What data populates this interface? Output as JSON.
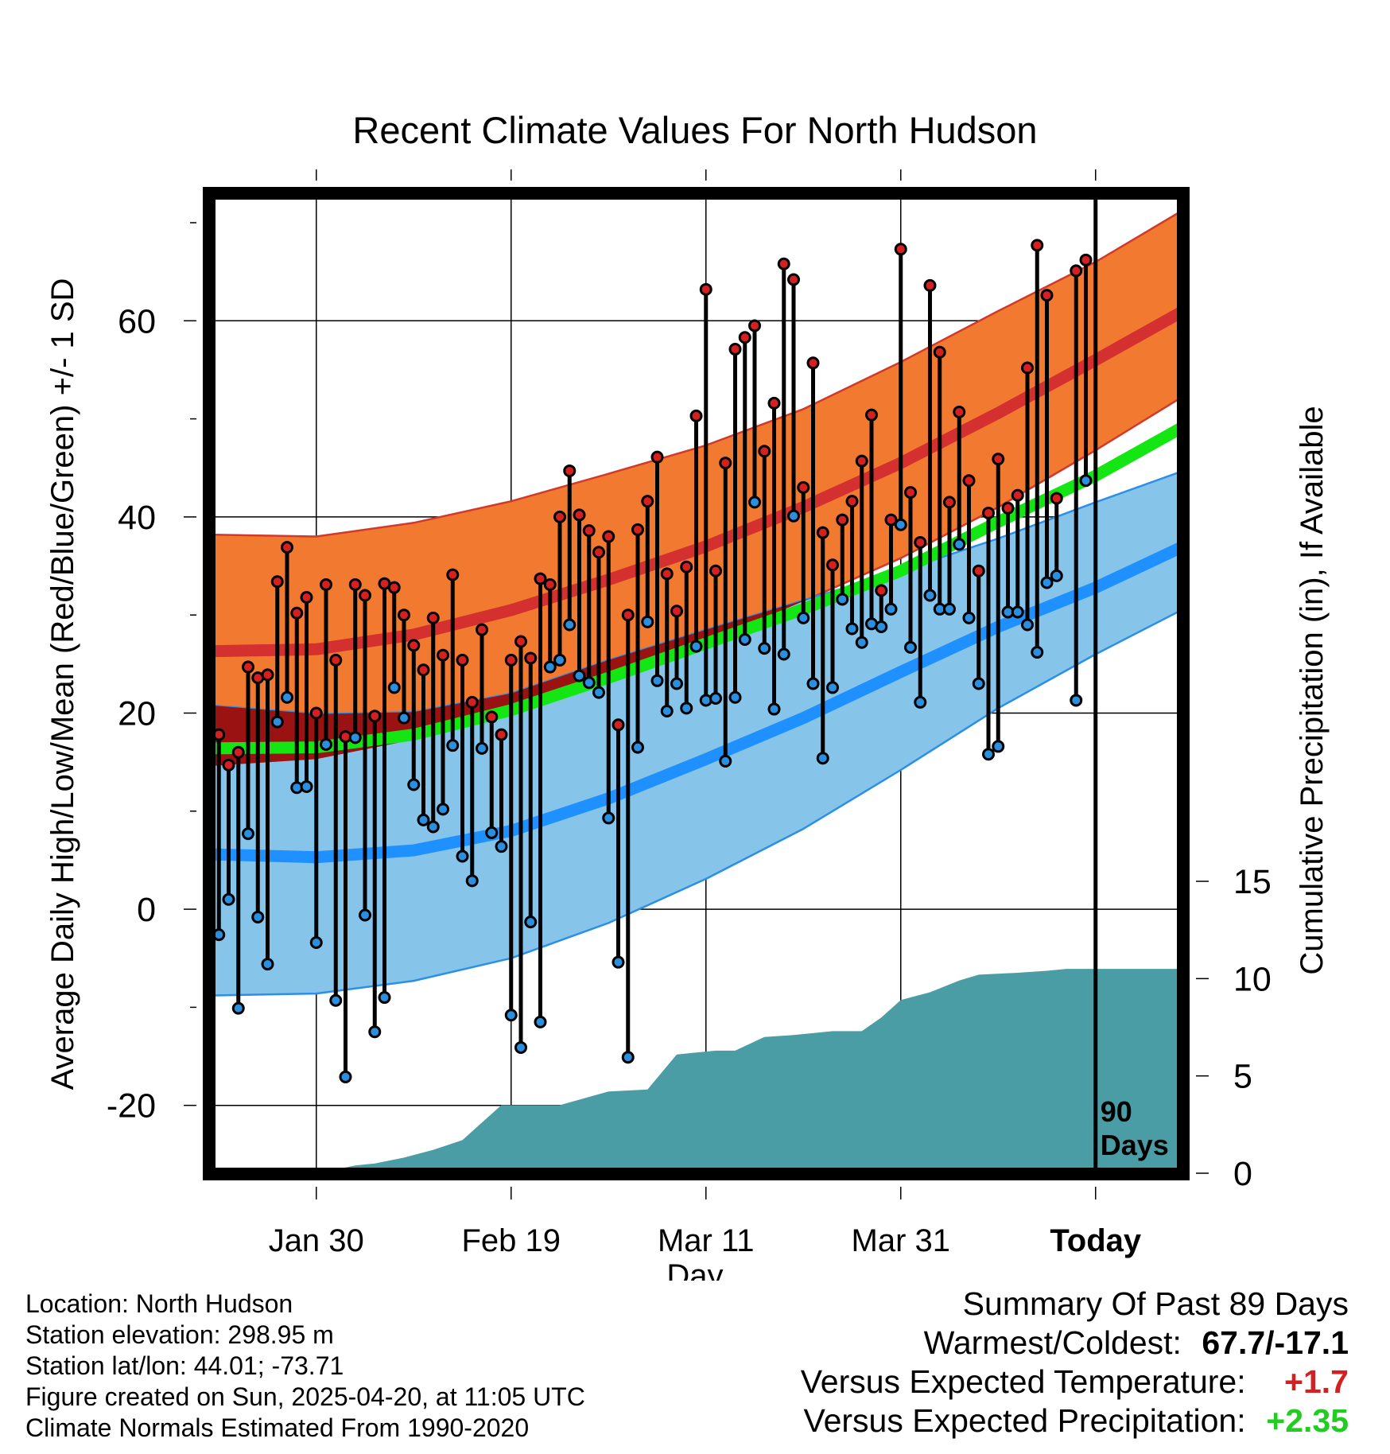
{
  "chart_data": {
    "type": "line",
    "title": "Recent Climate Values For North Hudson",
    "xlabel": "Day",
    "ylabel": "Average Daily High/Low/Mean (Red/Blue/Green) +/- 1 SD",
    "y2label": "Cumulative Precipitation (in), If Available",
    "x_tick_labels": [
      "Jan 30",
      "Feb 19",
      "Mar 11",
      "Mar 31",
      "Today"
    ],
    "x_tick_days": [
      10,
      30,
      50,
      70,
      90
    ],
    "y_ticks": [
      -20,
      0,
      20,
      40,
      60
    ],
    "ylim": [
      -27,
      73
    ],
    "y2_ticks": [
      0,
      5,
      10,
      15
    ],
    "y2lim": [
      0,
      15
    ],
    "xlim": [
      -1,
      99
    ],
    "today_label": [
      "90",
      "Days"
    ],
    "grid": true,
    "colors": {
      "high_band": "#f27a30",
      "high_band_edge": "#d03a2a",
      "high_mean": "#d43030",
      "low_band": "#86c4ea",
      "low_band_edge": "#2b8fe8",
      "low_mean": "#1e90ff",
      "mean": "#14e614",
      "overlap": "#9a1212",
      "precip": "#4a9da4",
      "high_point": "#d42020",
      "low_point": "#2b8fe0"
    },
    "normals": {
      "day": [
        -1,
        10,
        20,
        30,
        40,
        50,
        60,
        70,
        80,
        90,
        99
      ],
      "high_mean": [
        26.3,
        26.5,
        28.0,
        30.5,
        33.6,
        37.0,
        41.0,
        45.5,
        50.6,
        56.0,
        61.0
      ],
      "high_upper": [
        38.2,
        38.0,
        39.4,
        41.6,
        44.4,
        47.3,
        51.0,
        55.8,
        61.0,
        66.0,
        71.3
      ],
      "high_lower": [
        14.6,
        15.3,
        17.3,
        20.0,
        23.5,
        27.2,
        31.4,
        35.8,
        41.0,
        46.8,
        52.3
      ],
      "low_mean": [
        5.6,
        5.3,
        6.0,
        8.0,
        11.3,
        15.3,
        19.5,
        24.2,
        28.8,
        32.8,
        37.0
      ],
      "low_upper": [
        20.8,
        19.9,
        20.1,
        22.0,
        25.4,
        28.5,
        31.5,
        34.5,
        37.8,
        41.5,
        44.7
      ],
      "low_lower": [
        -8.8,
        -8.6,
        -7.3,
        -5.0,
        -1.4,
        3.1,
        8.2,
        14.2,
        20.5,
        26.0,
        30.6
      ],
      "mean": [
        16.4,
        16.5,
        17.8,
        20.3,
        23.6,
        27.1,
        30.6,
        34.5,
        39.5,
        44.2,
        49.2
      ]
    },
    "series": [
      {
        "name": "High",
        "values": [
          17.8,
          14.7,
          16.0,
          24.7,
          23.6,
          23.9,
          33.4,
          36.9,
          30.2,
          31.8,
          20.0,
          33.1,
          25.4,
          17.6,
          33.1,
          32.0,
          19.7,
          33.2,
          32.8,
          30.0,
          26.9,
          24.4,
          29.7,
          25.9,
          34.1,
          25.4,
          21.1,
          28.5,
          19.6,
          17.8,
          25.4,
          27.3,
          25.6,
          33.7,
          33.1,
          40.0,
          44.7,
          40.2,
          38.6,
          36.4,
          38.0,
          18.8,
          30.0,
          38.7,
          41.6,
          46.1,
          34.2,
          30.4,
          34.9,
          50.3,
          63.2,
          34.5,
          45.5,
          57.1,
          58.3,
          59.5,
          46.7,
          51.6,
          65.8,
          64.2,
          43.0,
          55.7,
          38.4,
          35.1,
          39.7,
          41.6,
          45.7,
          50.4,
          32.5,
          39.7,
          67.3,
          42.5,
          37.4,
          63.6,
          56.8,
          41.5,
          50.7,
          43.7,
          34.5,
          40.4,
          45.9,
          40.9,
          42.2,
          55.2,
          67.7,
          62.6,
          41.9,
          null,
          65.1,
          66.2
        ]
      },
      {
        "name": "Low",
        "values": [
          -2.6,
          1.0,
          -10.1,
          7.7,
          -0.8,
          -5.6,
          19.1,
          21.6,
          12.4,
          12.5,
          -3.4,
          16.8,
          -9.3,
          -17.1,
          17.5,
          -0.6,
          -12.5,
          -9.0,
          22.6,
          19.5,
          12.7,
          9.1,
          8.4,
          10.2,
          16.7,
          5.4,
          2.9,
          16.4,
          7.8,
          6.4,
          -10.8,
          -14.1,
          -1.3,
          -11.5,
          24.7,
          25.4,
          29.0,
          23.8,
          23.1,
          22.1,
          9.3,
          -5.4,
          -15.1,
          16.5,
          29.3,
          23.3,
          20.2,
          23.0,
          20.5,
          26.8,
          21.3,
          21.5,
          15.1,
          21.6,
          27.5,
          41.5,
          26.6,
          20.4,
          26.0,
          40.1,
          29.7,
          23.0,
          15.4,
          22.6,
          31.6,
          28.6,
          27.2,
          29.1,
          28.8,
          30.6,
          39.2,
          26.7,
          21.1,
          32.0,
          30.6,
          30.6,
          37.2,
          29.7,
          23.0,
          15.8,
          16.6,
          30.3,
          30.3,
          29.0,
          26.2,
          33.3,
          34.0,
          null,
          21.3,
          43.7
        ]
      }
    ],
    "precipitation": {
      "day": [
        10,
        12,
        14,
        16,
        19,
        22,
        25,
        29,
        32,
        35,
        40,
        44,
        47,
        49,
        51,
        53,
        56,
        59,
        63,
        66,
        68,
        70,
        73,
        76,
        78,
        82,
        85,
        87,
        89,
        90,
        99
      ],
      "inches": [
        0.0,
        0.2,
        0.4,
        0.5,
        0.8,
        1.2,
        1.7,
        3.5,
        3.5,
        3.5,
        4.2,
        4.3,
        6.1,
        6.2,
        6.3,
        6.3,
        7.0,
        7.1,
        7.3,
        7.3,
        8.0,
        8.9,
        9.3,
        9.9,
        10.2,
        10.3,
        10.4,
        10.5,
        10.5,
        10.5,
        10.5
      ]
    }
  },
  "station_info": {
    "location": "Location: North Hudson",
    "elevation": "Station elevation: 298.95 m",
    "latlon": "Station lat/lon: 44.01; -73.71",
    "created": "Figure created on Sun, 2025-04-20, at 11:05 UTC",
    "normals": "Climate Normals Estimated From 1990-2020"
  },
  "summary": {
    "heading": "Summary Of Past 89 Days",
    "warmest_coldest_label": "Warmest/Coldest:",
    "warmest_coldest_value": "67.7/-17.1",
    "temp_label": "Versus Expected Temperature:",
    "temp_value": "+1.7",
    "temp_color": "#d42020",
    "precip_label": "Versus Expected Precipitation:",
    "precip_value": "+2.35",
    "precip_color": "#22cc22"
  }
}
